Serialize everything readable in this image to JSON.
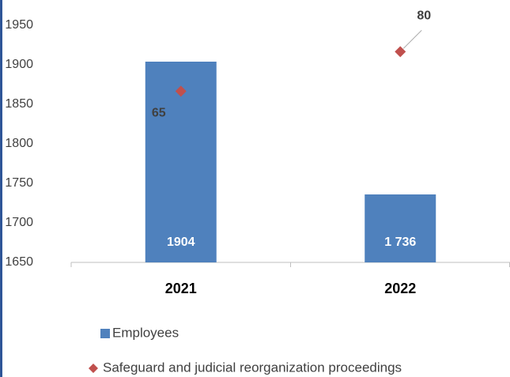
{
  "chart_data": {
    "type": "bar",
    "categories": [
      "2021",
      "2022"
    ],
    "series": [
      {
        "name": "Employees",
        "type": "bar",
        "color": "#4f81bd",
        "values": [
          1904,
          1736
        ],
        "value_labels": [
          "1904",
          "1 736"
        ]
      },
      {
        "name": "Safeguard and judicial reorganization proceedings",
        "type": "scatter",
        "axis": "y2",
        "color": "#c0504d",
        "values": [
          65,
          80
        ]
      }
    ],
    "ylim": [
      1650,
      1950
    ],
    "yticks": [
      1650,
      1700,
      1750,
      1800,
      1850,
      1900,
      1950
    ],
    "y2lim": [
      0,
      90
    ]
  }
}
